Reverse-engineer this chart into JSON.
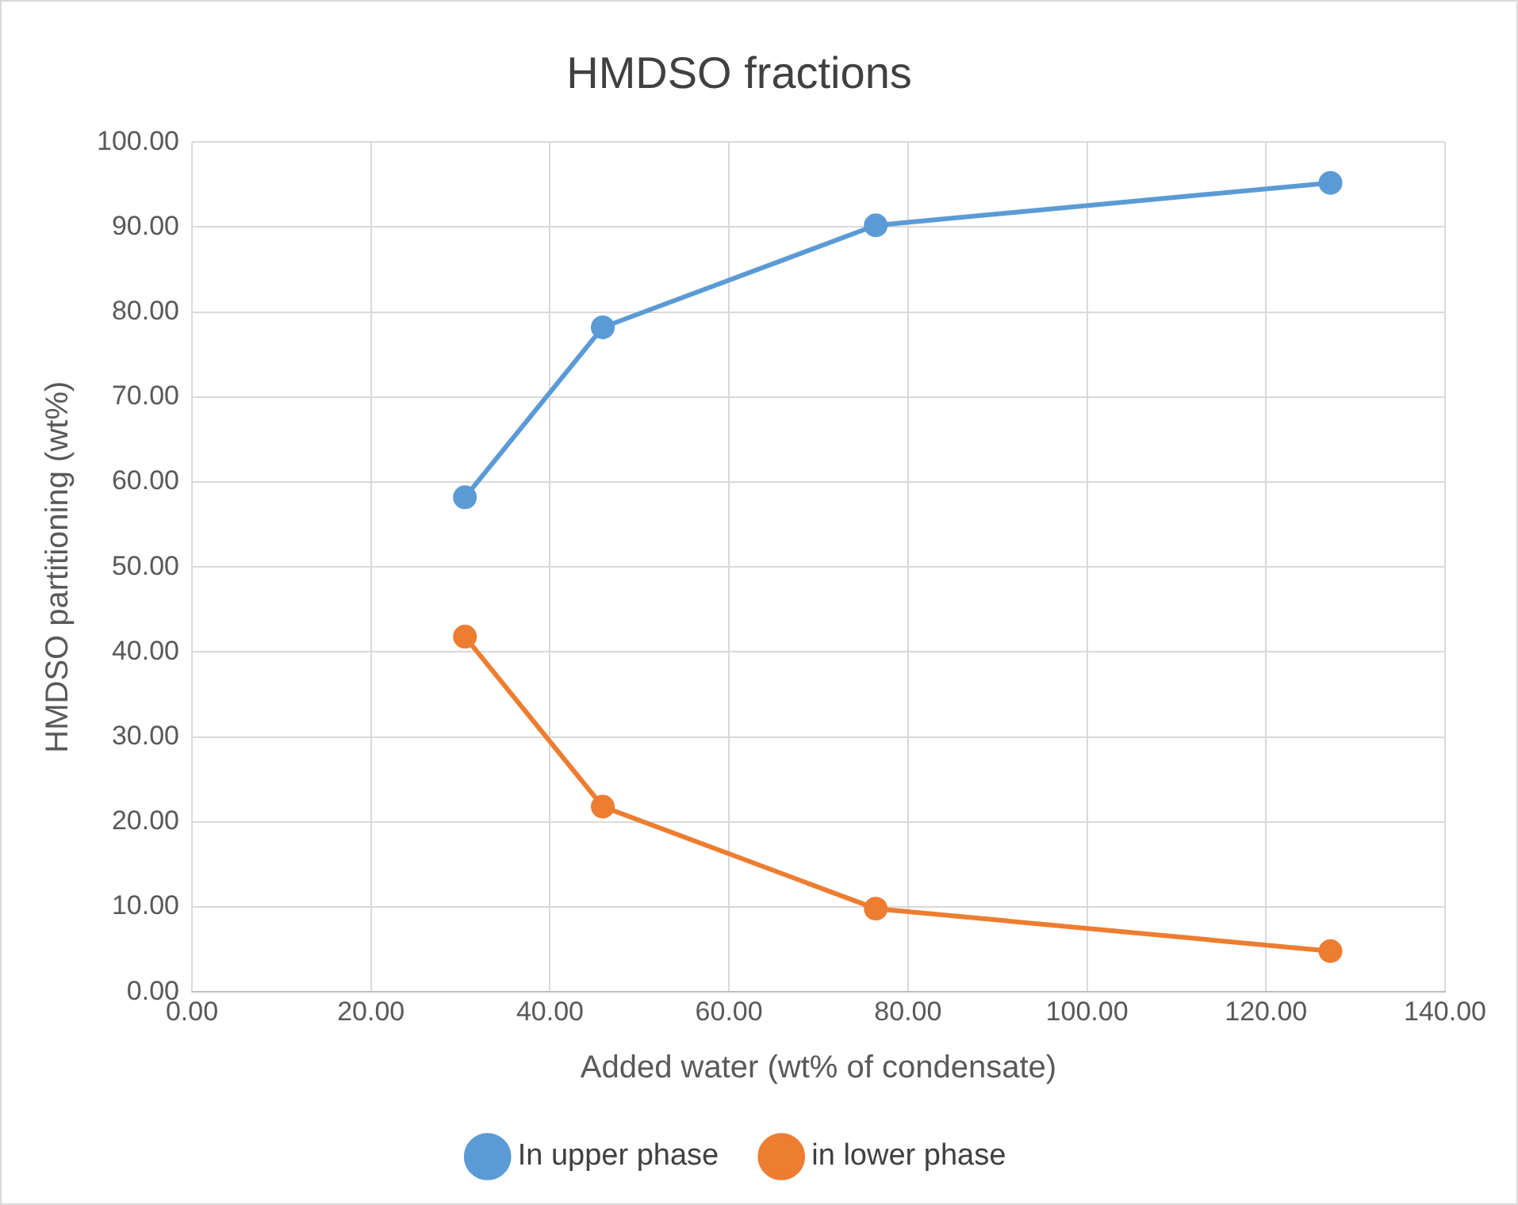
{
  "chart_data": {
    "type": "line",
    "title": "HMDSO fractions",
    "xlabel": "Added water (wt% of condensate)",
    "ylabel": "HMDSO partitioning (wt%)",
    "x": [
      30.5,
      45.9,
      76.4,
      127.2
    ],
    "series": [
      {
        "name": "In upper phase",
        "color": "#5b9bd5",
        "values": [
          58.2,
          78.2,
          90.2,
          95.2
        ]
      },
      {
        "name": "in lower phase",
        "color": "#ed7d31",
        "values": [
          41.8,
          21.8,
          9.8,
          4.8
        ]
      }
    ],
    "xlim": [
      0,
      140
    ],
    "xticks": [
      {
        "value": 0,
        "label": "0.00"
      },
      {
        "value": 20,
        "label": "20.00"
      },
      {
        "value": 40,
        "label": "40.00"
      },
      {
        "value": 60,
        "label": "60.00"
      },
      {
        "value": 80,
        "label": "80.00"
      },
      {
        "value": 100,
        "label": "100.00"
      },
      {
        "value": 120,
        "label": "120.00"
      },
      {
        "value": 140,
        "label": "140.00"
      }
    ],
    "ylim": [
      0,
      100
    ],
    "yticks": [
      {
        "value": 0,
        "label": "0.00"
      },
      {
        "value": 10,
        "label": "10.00"
      },
      {
        "value": 20,
        "label": "20.00"
      },
      {
        "value": 30,
        "label": "30.00"
      },
      {
        "value": 40,
        "label": "40.00"
      },
      {
        "value": 50,
        "label": "50.00"
      },
      {
        "value": 60,
        "label": "60.00"
      },
      {
        "value": 70,
        "label": "70.00"
      },
      {
        "value": 80,
        "label": "80.00"
      },
      {
        "value": 90,
        "label": "90.00"
      },
      {
        "value": 100,
        "label": "100.00"
      }
    ],
    "grid": true,
    "legend": "bottom",
    "marker": "circle",
    "line_style": "solid"
  }
}
